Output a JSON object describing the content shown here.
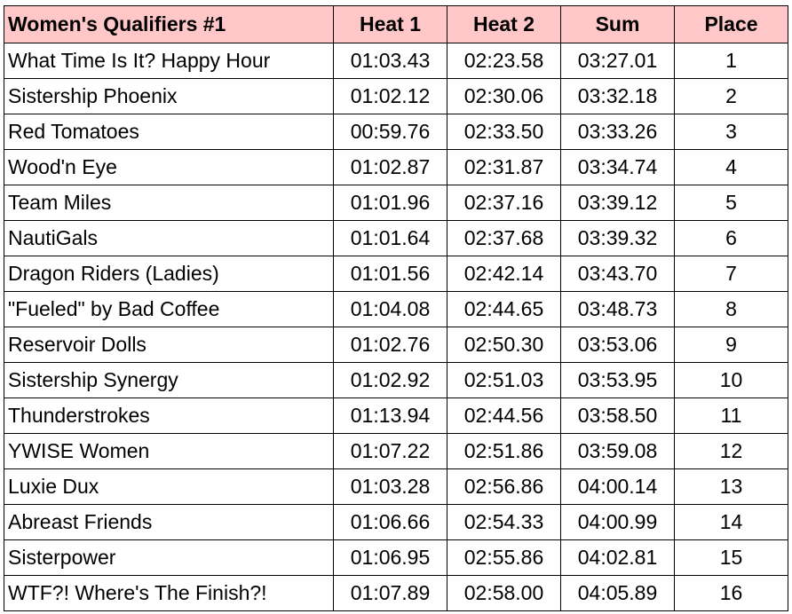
{
  "table": {
    "header": [
      "Women's Qualifiers #1",
      "Heat 1",
      "Heat 2",
      "Sum",
      "Place"
    ],
    "rows": [
      [
        "What Time Is It? Happy Hour",
        "01:03.43",
        "02:23.58",
        "03:27.01",
        1
      ],
      [
        "Sistership Phoenix",
        "01:02.12",
        "02:30.06",
        "03:32.18",
        2
      ],
      [
        "Red Tomatoes",
        "00:59.76",
        "02:33.50",
        "03:33.26",
        3
      ],
      [
        "Wood'n Eye",
        "01:02.87",
        "02:31.87",
        "03:34.74",
        4
      ],
      [
        "Team Miles",
        "01:01.96",
        "02:37.16",
        "03:39.12",
        5
      ],
      [
        "NautiGals",
        "01:01.64",
        "02:37.68",
        "03:39.32",
        6
      ],
      [
        "Dragon Riders (Ladies)",
        "01:01.56",
        "02:42.14",
        "03:43.70",
        7
      ],
      [
        "\"Fueled\" by Bad Coffee",
        "01:04.08",
        "02:44.65",
        "03:48.73",
        8
      ],
      [
        "Reservoir Dolls",
        "01:02.76",
        "02:50.30",
        "03:53.06",
        9
      ],
      [
        "Sistership Synergy",
        "01:02.92",
        "02:51.03",
        "03:53.95",
        10
      ],
      [
        "Thunderstrokes",
        "01:13.94",
        "02:44.56",
        "03:58.50",
        11
      ],
      [
        "YWISE Women",
        "01:07.22",
        "02:51.86",
        "03:59.08",
        12
      ],
      [
        "Luxie Dux",
        "01:03.28",
        "02:56.86",
        "04:00.14",
        13
      ],
      [
        "Abreast Friends",
        "01:06.66",
        "02:54.33",
        "04:00.99",
        14
      ],
      [
        "Sisterpower",
        "01:06.95",
        "02:55.86",
        "04:02.81",
        15
      ],
      [
        "WTF?! Where's The Finish?!",
        "01:07.89",
        "02:58.00",
        "04:05.89",
        16
      ]
    ]
  }
}
